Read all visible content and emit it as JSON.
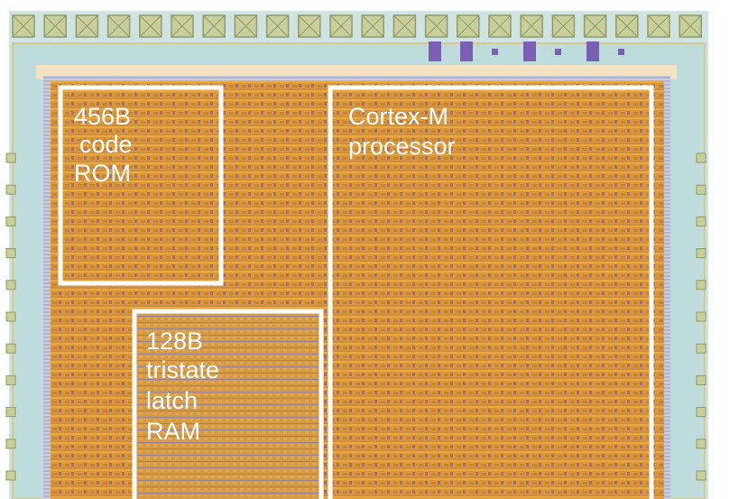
{
  "regions": [
    {
      "label_lines": [
        "456B",
        "code",
        "ROM"
      ]
    },
    {
      "label_lines": [
        "128B",
        "tristate",
        "latch",
        "RAM"
      ]
    },
    {
      "label_lines": [
        "Cortex-M",
        "processor"
      ]
    }
  ]
}
